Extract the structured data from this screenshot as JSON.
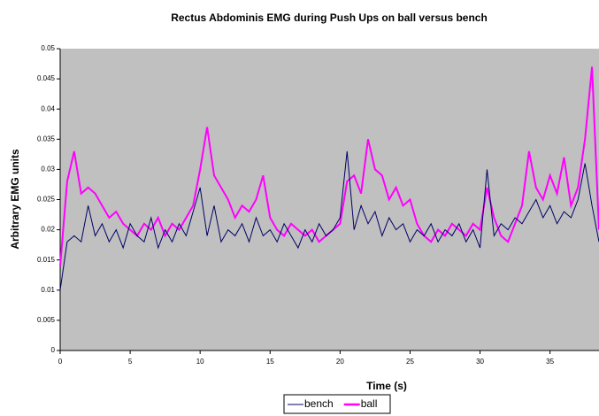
{
  "chart_data": {
    "type": "line",
    "title": "Rectus Abdominis EMG during Push Ups on ball versus bench",
    "x_label": "Time (s)",
    "y_label": "Arbitrary EMG units",
    "xlim": [
      0,
      38.5
    ],
    "xticks": [
      0,
      5,
      10,
      15,
      20,
      25,
      30,
      35
    ],
    "ylim": [
      0,
      0.05
    ],
    "yticks": [
      0,
      0.005,
      0.01,
      0.015,
      0.02,
      0.025,
      0.03,
      0.035,
      0.04,
      0.045,
      0.05
    ],
    "x": [
      0,
      0.5,
      1,
      1.5,
      2,
      2.5,
      3,
      3.5,
      4,
      4.5,
      5,
      5.5,
      6,
      6.5,
      7,
      7.5,
      8,
      8.5,
      9,
      9.5,
      10,
      10.5,
      11,
      11.5,
      12,
      12.5,
      13,
      13.5,
      14,
      14.5,
      15,
      15.5,
      16,
      16.5,
      17,
      17.5,
      18,
      18.5,
      19,
      19.5,
      20,
      20.5,
      21,
      21.5,
      22,
      22.5,
      23,
      23.5,
      24,
      24.5,
      25,
      25.5,
      26,
      26.5,
      27,
      27.5,
      28,
      28.5,
      29,
      29.5,
      30,
      30.5,
      31,
      31.5,
      32,
      32.5,
      33,
      33.5,
      34,
      34.5,
      35,
      35.5,
      36,
      36.5,
      37,
      37.5,
      38,
      38.5
    ],
    "series": [
      {
        "name": "bench",
        "color": "#000066",
        "values": [
          0.01,
          0.018,
          0.019,
          0.018,
          0.024,
          0.019,
          0.021,
          0.018,
          0.02,
          0.017,
          0.021,
          0.019,
          0.018,
          0.022,
          0.017,
          0.02,
          0.018,
          0.021,
          0.019,
          0.023,
          0.027,
          0.019,
          0.024,
          0.018,
          0.02,
          0.019,
          0.021,
          0.018,
          0.022,
          0.019,
          0.02,
          0.018,
          0.021,
          0.019,
          0.017,
          0.02,
          0.018,
          0.021,
          0.019,
          0.02,
          0.022,
          0.033,
          0.02,
          0.024,
          0.021,
          0.023,
          0.019,
          0.022,
          0.02,
          0.021,
          0.018,
          0.02,
          0.019,
          0.021,
          0.018,
          0.02,
          0.019,
          0.021,
          0.018,
          0.02,
          0.017,
          0.03,
          0.019,
          0.021,
          0.02,
          0.022,
          0.021,
          0.023,
          0.025,
          0.022,
          0.024,
          0.021,
          0.023,
          0.022,
          0.025,
          0.031,
          0.024,
          0.018
        ]
      },
      {
        "name": "ball",
        "color": "#ff00ff",
        "values": [
          0.014,
          0.028,
          0.033,
          0.026,
          0.027,
          0.026,
          0.024,
          0.022,
          0.023,
          0.021,
          0.02,
          0.019,
          0.021,
          0.02,
          0.022,
          0.019,
          0.021,
          0.02,
          0.022,
          0.024,
          0.03,
          0.037,
          0.029,
          0.027,
          0.025,
          0.022,
          0.024,
          0.023,
          0.025,
          0.029,
          0.022,
          0.02,
          0.019,
          0.021,
          0.02,
          0.019,
          0.02,
          0.018,
          0.019,
          0.02,
          0.021,
          0.028,
          0.029,
          0.026,
          0.035,
          0.03,
          0.029,
          0.025,
          0.027,
          0.024,
          0.025,
          0.021,
          0.019,
          0.018,
          0.02,
          0.019,
          0.021,
          0.02,
          0.019,
          0.021,
          0.02,
          0.027,
          0.022,
          0.019,
          0.018,
          0.021,
          0.024,
          0.033,
          0.027,
          0.025,
          0.029,
          0.026,
          0.032,
          0.024,
          0.027,
          0.035,
          0.047,
          0.02
        ]
      }
    ]
  }
}
